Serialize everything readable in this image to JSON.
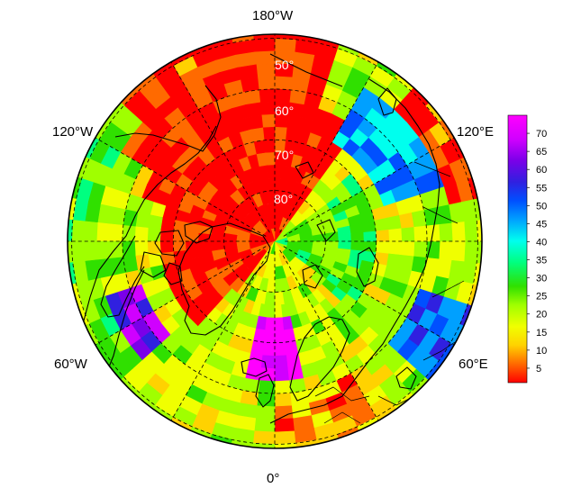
{
  "map": {
    "projection": "north-polar-stereographic",
    "longitude_labels": [
      {
        "name": "lon-label-180w",
        "text": "180°W"
      },
      {
        "name": "lon-label-120w",
        "text": "120°W"
      },
      {
        "name": "lon-label-120e",
        "text": "120°E"
      },
      {
        "name": "lon-label-60w",
        "text": "60°W"
      },
      {
        "name": "lon-label-60e",
        "text": "60°E"
      },
      {
        "name": "lon-label-0",
        "text": "0°"
      }
    ],
    "latitude_labels": [
      {
        "name": "lat-label-50",
        "text": "50°"
      },
      {
        "name": "lat-label-60",
        "text": "60°"
      },
      {
        "name": "lat-label-70",
        "text": "70°"
      },
      {
        "name": "lat-label-80",
        "text": "80°"
      }
    ],
    "graticule_latitudes": [
      50,
      60,
      70,
      80
    ],
    "graticule_longitudes": [
      0,
      30,
      60,
      90,
      120,
      150,
      180,
      210,
      240,
      270,
      300,
      330
    ]
  },
  "colorbar": {
    "ticks": [
      "5",
      "10",
      "15",
      "20",
      "25",
      "30",
      "35",
      "40",
      "45",
      "50",
      "55",
      "60",
      "65",
      "70"
    ],
    "tick_values": [
      5,
      10,
      15,
      20,
      25,
      30,
      35,
      40,
      45,
      50,
      55,
      60,
      65,
      70
    ],
    "min": 1,
    "max": 75,
    "colors": [
      "#ff0000",
      "#ff6a00",
      "#ffd200",
      "#f0ff00",
      "#a0ff00",
      "#30e000",
      "#00ff80",
      "#00ffee",
      "#00a0ff",
      "#0050ff",
      "#3020e0",
      "#7a00e8",
      "#d000ff",
      "#ff00ff"
    ]
  },
  "colors": {
    "ocean_high": "#ff0000",
    "coastline": "#000000"
  }
}
